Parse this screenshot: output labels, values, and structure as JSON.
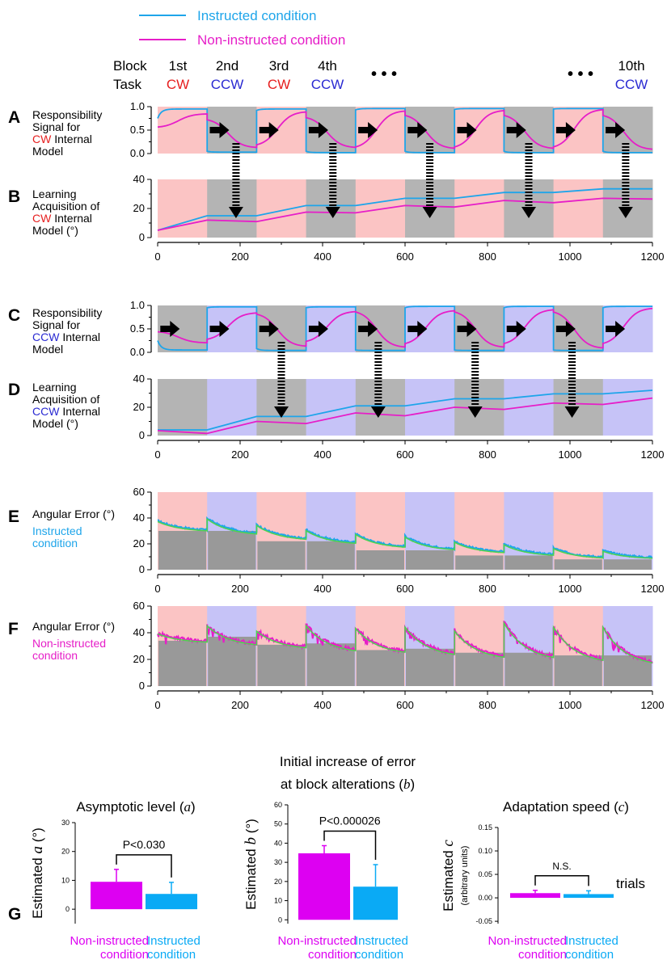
{
  "legend": {
    "instructed": "Instructed condition",
    "non_instructed": "Non-instructed condition"
  },
  "header": {
    "block_label": "Block",
    "task_label": "Task",
    "block_names": [
      "1st",
      "2nd",
      "3rd",
      "4th",
      "10th"
    ],
    "task_names": [
      "CW",
      "CCW",
      "CW",
      "CCW",
      "CCW"
    ],
    "ellipsis": "• • •"
  },
  "colors": {
    "instructed": "#1ea5ea",
    "non_instructed": "#e61ec8",
    "cw_bg": "#fbc4c4",
    "ccw_bg": "#c6c3f7",
    "grey_bg": "#b4b4b4",
    "cw_text": "#e61e1e",
    "ccw_text": "#2a2ad2",
    "bar_non": "#dd00f2",
    "bar_ins": "#0aaaf5",
    "fit_line": "#4ed34e",
    "asymptote_bar": "#999999"
  },
  "panels": {
    "A": {
      "letter": "A",
      "lines": [
        "Responsibility",
        "Signal for",
        "$CW Internal",
        "Model"
      ]
    },
    "B": {
      "letter": "B",
      "lines": [
        "Learning",
        "Acquisition of",
        "$CW Internal",
        "Model (°)"
      ]
    },
    "C": {
      "letter": "C",
      "lines": [
        "Responsibility",
        "Signal for",
        "$CCW Internal",
        "Model"
      ]
    },
    "D": {
      "letter": "D",
      "lines": [
        "Learning",
        "Acquisition of",
        "$CCW Internal",
        "Model (°)"
      ]
    },
    "E": {
      "letter": "E",
      "lines": [
        "Angular Error (°)",
        "#Instructed",
        "#condition"
      ]
    },
    "F": {
      "letter": "F",
      "lines": [
        "Angular Error (°)",
        "%Non-instructed",
        "%condition"
      ]
    }
  },
  "x_axis_label": "trials",
  "G": {
    "letter": "G",
    "xcat_non": [
      "Non-instructed",
      "condition"
    ],
    "xcat_ins": [
      "Instructed",
      "condition"
    ]
  },
  "chart_data": [
    {
      "id": "A",
      "type": "line",
      "x_range": [
        0,
        1200
      ],
      "ylim": [
        0,
        1
      ],
      "yticks": [
        "0.0",
        "0.5",
        "1.0"
      ],
      "block_length": 120,
      "background_pattern": [
        "cw",
        "grey",
        "cw",
        "grey",
        "cw",
        "grey",
        "cw",
        "grey",
        "cw",
        "grey"
      ],
      "series": [
        {
          "name": "Instructed condition",
          "block_start": [
            0.75,
            0.05,
            0.92,
            0.05,
            0.93,
            0.05,
            0.94,
            0.05,
            0.95,
            0.05
          ],
          "block_end": [
            0.95,
            0.03,
            0.95,
            0.02,
            0.96,
            0.02,
            0.96,
            0.02,
            0.96,
            0.02
          ],
          "shape": "fast"
        },
        {
          "name": "Non-instructed condition",
          "block_start": [
            0.55,
            0.75,
            0.15,
            0.8,
            0.1,
            0.85,
            0.1,
            0.85,
            0.1,
            0.85
          ],
          "block_end": [
            0.85,
            0.12,
            0.9,
            0.12,
            0.92,
            0.1,
            0.93,
            0.1,
            0.95,
            0.08
          ],
          "shape": "slow"
        }
      ],
      "arrows_right_at": [
        150,
        270,
        390,
        510,
        630,
        750,
        870,
        990,
        1110
      ],
      "dashed_arrows_at": [
        190,
        425,
        660,
        900,
        1135
      ]
    },
    {
      "id": "B",
      "type": "line",
      "x_range": [
        0,
        1200
      ],
      "ylim": [
        0,
        40
      ],
      "yticks": [
        "0",
        "20",
        "40"
      ],
      "xticks": [
        0,
        200,
        400,
        600,
        800,
        1000,
        1200
      ],
      "background_pattern": [
        "cw",
        "grey",
        "cw",
        "grey",
        "cw",
        "grey",
        "cw",
        "grey",
        "cw",
        "grey"
      ],
      "series": [
        {
          "name": "Instructed condition",
          "points": [
            [
              0,
              5
            ],
            [
              120,
              15
            ],
            [
              240,
              15
            ],
            [
              360,
              22
            ],
            [
              480,
              22
            ],
            [
              600,
              27
            ],
            [
              720,
              27
            ],
            [
              840,
              31
            ],
            [
              960,
              31
            ],
            [
              1080,
              33.5
            ],
            [
              1200,
              33.5
            ]
          ]
        },
        {
          "name": "Non-instructed condition",
          "points": [
            [
              0,
              5
            ],
            [
              120,
              12
            ],
            [
              240,
              11
            ],
            [
              360,
              17.5
            ],
            [
              480,
              17
            ],
            [
              600,
              22
            ],
            [
              720,
              21
            ],
            [
              840,
              25.5
            ],
            [
              960,
              24
            ],
            [
              1080,
              27
            ],
            [
              1200,
              26.5
            ]
          ]
        }
      ]
    },
    {
      "id": "C",
      "type": "line",
      "x_range": [
        0,
        1200
      ],
      "ylim": [
        0,
        1
      ],
      "yticks": [
        "0.0",
        "0.5",
        "1.0"
      ],
      "block_length": 120,
      "background_pattern": [
        "grey",
        "ccw",
        "grey",
        "ccw",
        "grey",
        "ccw",
        "grey",
        "ccw",
        "grey",
        "ccw"
      ],
      "series": [
        {
          "name": "Instructed condition",
          "block_start": [
            0.25,
            0.95,
            0.08,
            0.95,
            0.05,
            0.95,
            0.05,
            0.95,
            0.05,
            0.95
          ],
          "block_end": [
            0.05,
            0.97,
            0.04,
            0.97,
            0.04,
            0.98,
            0.04,
            0.98,
            0.04,
            0.98
          ],
          "shape": "fast"
        },
        {
          "name": "Non-instructed condition",
          "block_start": [
            0.45,
            0.25,
            0.85,
            0.2,
            0.9,
            0.15,
            0.9,
            0.15,
            0.9,
            0.15
          ],
          "block_end": [
            0.2,
            0.85,
            0.12,
            0.88,
            0.1,
            0.9,
            0.1,
            0.92,
            0.08,
            0.95
          ],
          "shape": "slow"
        }
      ],
      "arrows_right_at": [
        30,
        150,
        270,
        390,
        510,
        630,
        750,
        870,
        990,
        1110
      ],
      "dashed_arrows_at": [
        300,
        535,
        770,
        1005
      ]
    },
    {
      "id": "D",
      "type": "line",
      "x_range": [
        0,
        1200
      ],
      "ylim": [
        0,
        40
      ],
      "yticks": [
        "0",
        "20",
        "40"
      ],
      "xticks": [
        0,
        200,
        400,
        600,
        800,
        1000,
        1200
      ],
      "background_pattern": [
        "grey",
        "ccw",
        "grey",
        "ccw",
        "grey",
        "ccw",
        "grey",
        "ccw",
        "grey",
        "ccw"
      ],
      "series": [
        {
          "name": "Instructed condition",
          "points": [
            [
              0,
              4
            ],
            [
              120,
              4
            ],
            [
              240,
              13.5
            ],
            [
              360,
              13.5
            ],
            [
              480,
              21
            ],
            [
              600,
              21
            ],
            [
              720,
              26
            ],
            [
              840,
              26
            ],
            [
              960,
              29.5
            ],
            [
              1080,
              29.5
            ],
            [
              1200,
              32
            ]
          ]
        },
        {
          "name": "Non-instructed condition",
          "points": [
            [
              0,
              3.5
            ],
            [
              120,
              1.5
            ],
            [
              240,
              10
            ],
            [
              360,
              8.5
            ],
            [
              480,
              16
            ],
            [
              600,
              14
            ],
            [
              720,
              20
            ],
            [
              840,
              18.5
            ],
            [
              960,
              23
            ],
            [
              1080,
              22
            ],
            [
              1200,
              26.5
            ]
          ]
        }
      ]
    },
    {
      "id": "E",
      "type": "line",
      "x_range": [
        0,
        1200
      ],
      "ylim": [
        0,
        60
      ],
      "yticks": [
        "0",
        "20",
        "40",
        "60"
      ],
      "xticks": [
        0,
        200,
        400,
        600,
        800,
        1000,
        1200
      ],
      "background_pattern": [
        "cw",
        "ccw",
        "cw",
        "ccw",
        "cw",
        "ccw",
        "cw",
        "ccw",
        "cw",
        "ccw"
      ],
      "asymptote_bars": [
        30,
        30,
        22,
        22,
        15,
        15,
        11,
        11,
        8,
        8
      ],
      "series": [
        {
          "name": "Instructed condition",
          "block_start": [
            38,
            40,
            35,
            31,
            28,
            26,
            22,
            20,
            17,
            15
          ],
          "block_end": [
            30,
            27,
            23,
            20,
            17,
            15,
            13,
            11,
            9,
            9
          ]
        }
      ]
    },
    {
      "id": "F",
      "type": "line",
      "x_range": [
        0,
        1200
      ],
      "ylim": [
        0,
        60
      ],
      "yticks": [
        "0",
        "20",
        "40",
        "60"
      ],
      "xticks": [
        0,
        200,
        400,
        600,
        800,
        1000,
        1200
      ],
      "background_pattern": [
        "cw",
        "ccw",
        "cw",
        "ccw",
        "cw",
        "ccw",
        "cw",
        "ccw",
        "cw",
        "ccw"
      ],
      "asymptote_bars": [
        34,
        37,
        31,
        32,
        27,
        28,
        25,
        25,
        23,
        23
      ],
      "series": [
        {
          "name": "Non-instructed condition",
          "block_start": [
            40,
            46,
            42,
            46,
            44,
            45,
            42,
            48,
            45,
            45
          ],
          "block_end": [
            33,
            30,
            28,
            25,
            24,
            22,
            20,
            19,
            17,
            15
          ]
        }
      ]
    },
    {
      "id": "G1",
      "type": "bar",
      "title": "Asymptotic level (a)",
      "ylabel": "Estimated a (°)",
      "ylim": [
        -5,
        30
      ],
      "yticks": [
        "0",
        "10",
        "20",
        "30"
      ],
      "categories": [
        "Non-instructed condition",
        "Instructed condition"
      ],
      "values": [
        9.5,
        5.3
      ],
      "errors": [
        4.3,
        4.0
      ],
      "significance": "P<0.030"
    },
    {
      "id": "G2",
      "type": "bar",
      "title_line1": "Initial increase of error",
      "title_line2": "at block alterations (b)",
      "ylabel": "Estimated b (°)",
      "ylim": [
        -2,
        60
      ],
      "yticks": [
        "0",
        "10",
        "20",
        "30",
        "40",
        "50",
        "60"
      ],
      "categories": [
        "Non-instructed condition",
        "Instructed condition"
      ],
      "values": [
        34.7,
        17.3
      ],
      "errors": [
        4.0,
        11.5
      ],
      "significance": "P<0.000026"
    },
    {
      "id": "G3",
      "type": "bar",
      "title": "Adaptation speed (c)",
      "ylabel": "Estimated c",
      "ylabel_sub": "(arbitrary units)",
      "ylim": [
        -0.055,
        0.15
      ],
      "yticks": [
        "-0.05",
        "0.00",
        "0.05",
        "0.10",
        "0.15"
      ],
      "categories": [
        "Non-instructed condition",
        "Instructed condition"
      ],
      "values": [
        0.01,
        0.008
      ],
      "errors": [
        0.006,
        0.007
      ],
      "significance": "N.S."
    }
  ]
}
